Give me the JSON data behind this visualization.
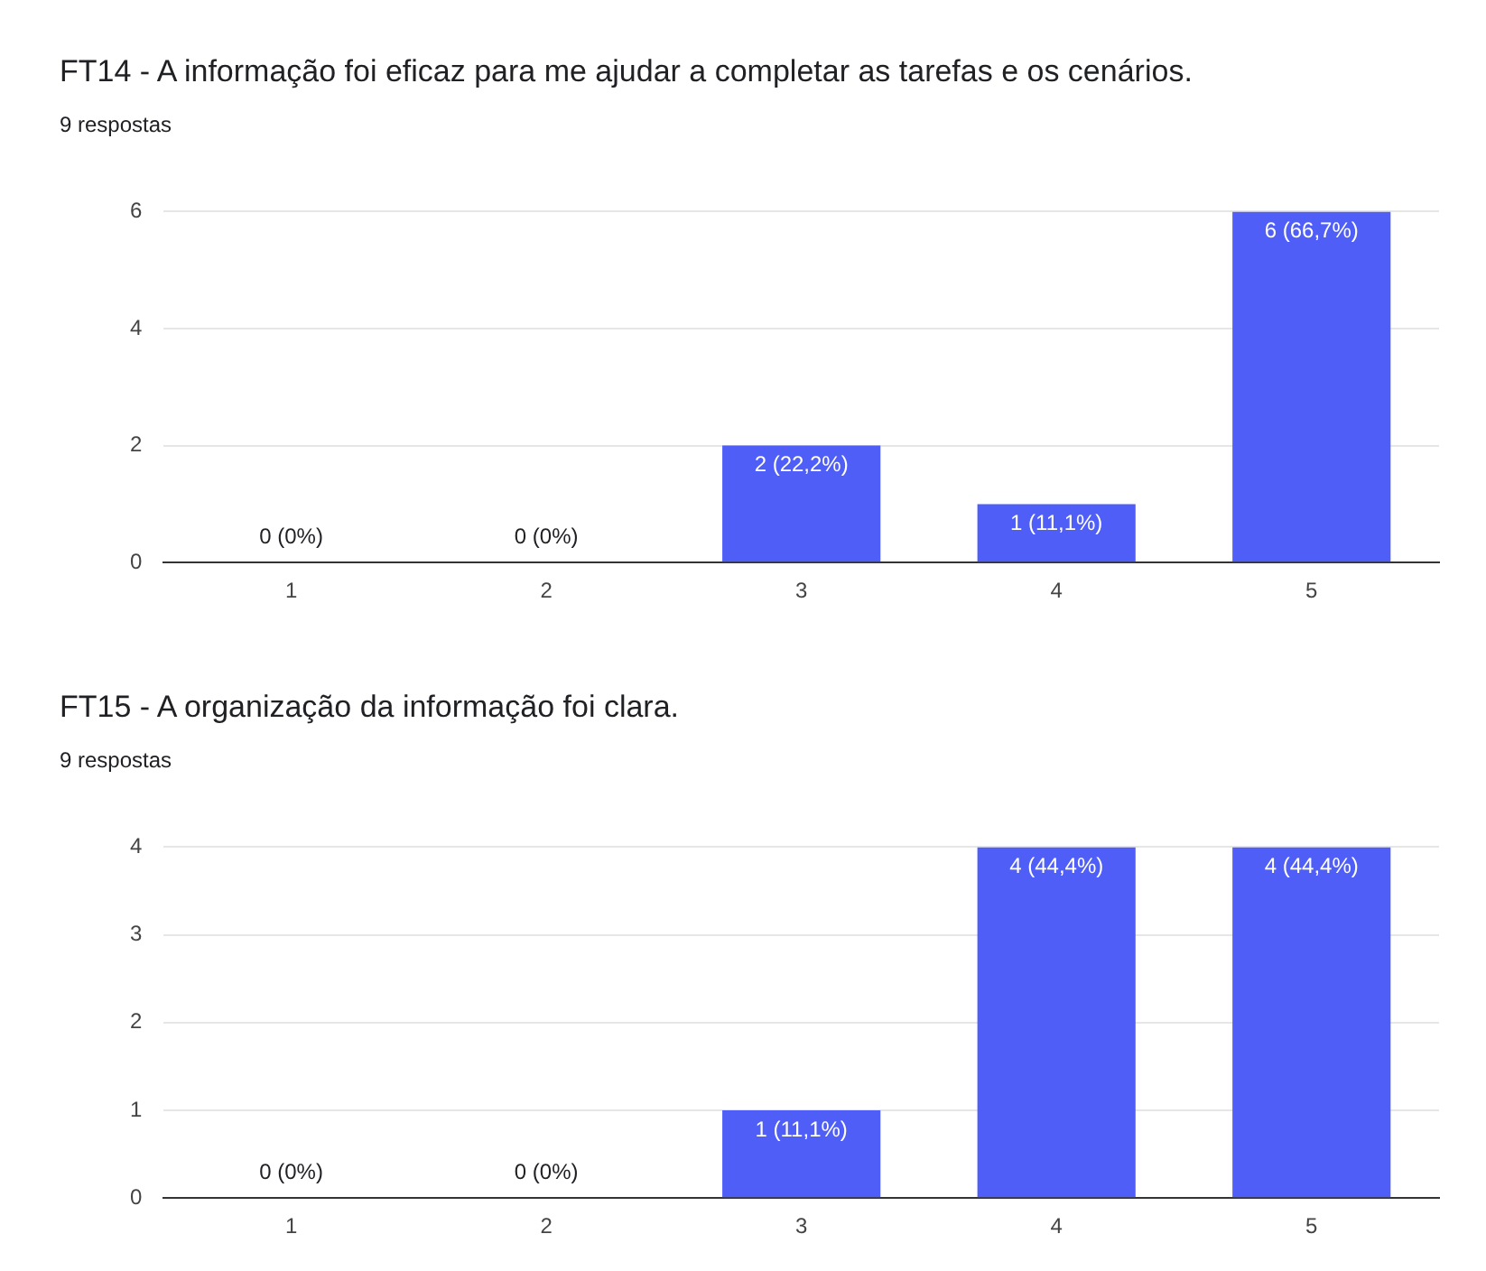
{
  "chart_data": [
    {
      "type": "bar",
      "title": "FT14 - A informação foi eficaz para me ajudar a completar as tarefas e os cenários.",
      "subtitle": "9 respostas",
      "categories": [
        "1",
        "2",
        "3",
        "4",
        "5"
      ],
      "values": [
        0,
        0,
        2,
        1,
        6
      ],
      "value_labels": [
        "0 (0%)",
        "0 (0%)",
        "2 (22,2%)",
        "1 (11,1%)",
        "6 (66,7%)"
      ],
      "color": "#4f5ef6",
      "ylim": [
        0,
        6
      ],
      "yticks": [
        0,
        2,
        4,
        6
      ],
      "grid": "y",
      "legend": false
    },
    {
      "type": "bar",
      "title": "FT15 - A organização da informação foi clara.",
      "subtitle": "9 respostas",
      "categories": [
        "1",
        "2",
        "3",
        "4",
        "5"
      ],
      "values": [
        0,
        0,
        1,
        4,
        4
      ],
      "value_labels": [
        "0 (0%)",
        "0 (0%)",
        "1 (11,1%)",
        "4 (44,4%)",
        "4 (44,4%)"
      ],
      "color": "#4f5ef6",
      "ylim": [
        0,
        4
      ],
      "yticks": [
        0,
        1,
        2,
        3,
        4
      ],
      "grid": "y",
      "legend": false
    }
  ]
}
